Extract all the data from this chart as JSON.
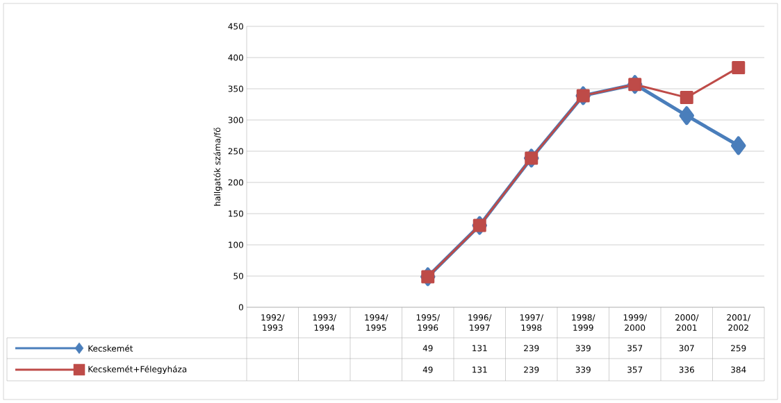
{
  "chart_data": {
    "type": "line",
    "ylabel": "hallgatók száma/fő",
    "categories": [
      "1992/ 1993",
      "1993/ 1994",
      "1994/ 1995",
      "1995/ 1996",
      "1996/ 1997",
      "1997/ 1998",
      "1998/ 1999",
      "1999/ 2000",
      "2000/ 2001",
      "2001/ 2002"
    ],
    "series": [
      {
        "name": "Kecskemét",
        "color": "#4a7ebb",
        "marker": "diamond",
        "values": [
          null,
          null,
          null,
          49,
          131,
          239,
          339,
          357,
          307,
          259
        ]
      },
      {
        "name": "Kecskemét+Félegyháza",
        "color": "#be4b48",
        "marker": "square",
        "values": [
          null,
          null,
          null,
          49,
          131,
          239,
          339,
          357,
          336,
          384
        ]
      }
    ],
    "ylim": [
      0,
      450
    ],
    "yticks": [
      0,
      50,
      100,
      150,
      200,
      250,
      300,
      350,
      400,
      450
    ],
    "grid": "y",
    "legend": "bottom",
    "data_labels": true
  }
}
